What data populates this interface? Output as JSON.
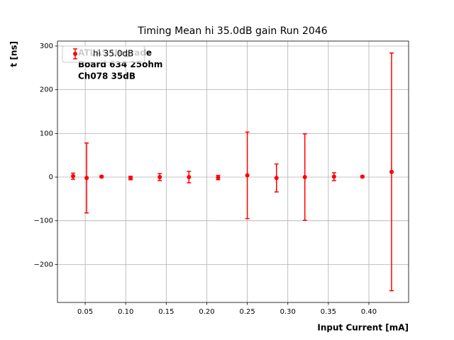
{
  "chart_data": {
    "type": "errorbar",
    "title": "Timing Mean hi 35.0dB gain Run 2046",
    "x_label": "Input Current [mA]",
    "y_label": "t [ns]",
    "annotations": [
      "ATLAS Upgrade",
      "Board 634 25ohm",
      "Ch078 35dB"
    ],
    "legend": "upper left",
    "grid": true,
    "xlim": [
      0.0158,
      0.449
    ],
    "ylim": [
      -286.9,
      311.3
    ],
    "xticks": [
      0.05,
      {
        "value": 0.1,
        "label": "0.10"
      },
      0.15,
      {
        "value": 0.2,
        "label": "0.20"
      },
      0.25,
      {
        "value": 0.3,
        "label": "0.30"
      },
      0.35,
      {
        "value": 0.4,
        "label": "0.40"
      }
    ],
    "yticks": [
      {
        "value": -200,
        "label": "−200"
      },
      {
        "value": -100,
        "label": "−100"
      },
      0,
      100,
      200,
      300
    ],
    "series": [
      {
        "name": "hi 35.0dB",
        "color": "#ff0000",
        "x": [
          0.0351,
          0.0518,
          0.0702,
          0.106,
          0.142,
          0.178,
          0.214,
          0.25,
          0.286,
          0.321,
          0.357,
          0.392,
          0.428
        ],
        "values": [
          2,
          -2,
          1,
          -2,
          0,
          0,
          -1,
          4,
          -2,
          0,
          1,
          1,
          12
        ],
        "errors": [
          7,
          80,
          2,
          4,
          8,
          13,
          5,
          99,
          32,
          99,
          9,
          2,
          272
        ]
      }
    ]
  }
}
